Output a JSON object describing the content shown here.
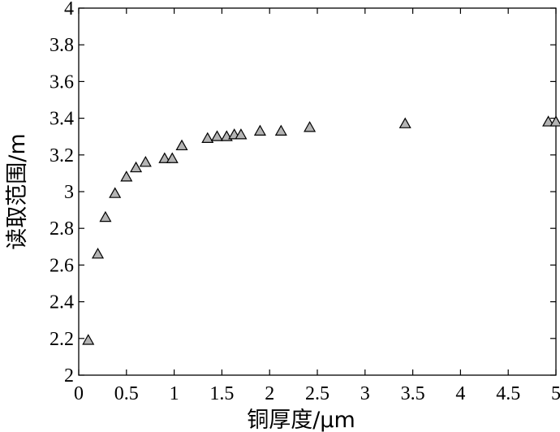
{
  "chart_data": {
    "type": "scatter",
    "xlabel": "铜厚度/μm",
    "ylabel": "读取范围/m",
    "xlim": [
      0,
      5
    ],
    "ylim": [
      2,
      4
    ],
    "xticks": [
      "0",
      "0.5",
      "1",
      "1.5",
      "2",
      "2.5",
      "3",
      "3.5",
      "4",
      "4.5",
      "5"
    ],
    "yticks": [
      "2",
      "2.2",
      "2.4",
      "2.6",
      "2.8",
      "3",
      "3.2",
      "3.4",
      "3.6",
      "3.8",
      "4"
    ],
    "grid": false,
    "marker": "triangle",
    "marker_fill": "#b4b4b4",
    "series": [
      {
        "x": [
          0.1,
          0.2,
          0.28,
          0.38,
          0.5,
          0.6,
          0.7,
          0.9,
          0.98,
          1.08,
          1.35,
          1.45,
          1.55,
          1.63,
          1.7,
          1.9,
          2.12,
          2.42,
          3.42,
          4.92,
          5.0
        ],
        "y": [
          2.19,
          2.66,
          2.86,
          2.99,
          3.08,
          3.13,
          3.16,
          3.18,
          3.18,
          3.25,
          3.29,
          3.3,
          3.3,
          3.31,
          3.31,
          3.33,
          3.33,
          3.35,
          3.37,
          3.38,
          3.38
        ]
      }
    ]
  }
}
